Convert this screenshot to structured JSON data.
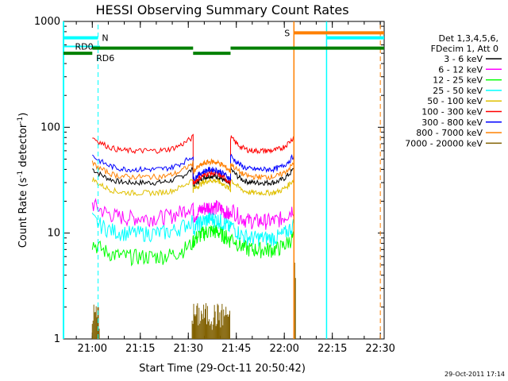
{
  "chart_data": {
    "type": "line",
    "title": "HESSI Observing Summary Count Rates",
    "xlabel": "Start Time (29-Oct-11 20:50:42)",
    "ylabel_main": "Count Rate (s",
    "ylabel_sup1": "-1",
    "ylabel_mid": " detector",
    "ylabel_sup2": "-1",
    "ylabel_end": ")",
    "yscale": "log",
    "ylim": [
      1,
      1000
    ],
    "xlim_minutes": [
      20.85,
      22.52
    ],
    "x_ticks": [
      "21:00",
      "21:15",
      "21:30",
      "21:45",
      "22:00",
      "22:15",
      "22:30"
    ],
    "x_tick_values": [
      21.0,
      21.25,
      21.5,
      21.75,
      22.0,
      22.25,
      22.5
    ],
    "y_ticks": [
      "1",
      "10",
      "100",
      "1000"
    ],
    "y_tick_values": [
      1,
      10,
      100,
      1000
    ],
    "legend_header": [
      "Det 1,3,4,5,6,",
      "FDecim 1, Att 0"
    ],
    "series": [
      {
        "name": "3 - 6 keV",
        "color": "#000000",
        "levels": [
          30,
          33,
          30
        ]
      },
      {
        "name": "6 - 12 keV",
        "color": "#ff00ff",
        "levels": [
          14,
          17,
          13
        ]
      },
      {
        "name": "12 - 25 keV",
        "color": "#00ff00",
        "levels": [
          6,
          10,
          7
        ]
      },
      {
        "name": "25 - 50 keV",
        "color": "#00ffff",
        "levels": [
          10,
          13,
          9
        ]
      },
      {
        "name": "50 - 100 keV",
        "color": "#e0c000",
        "levels": [
          24,
          30,
          24
        ]
      },
      {
        "name": "100 - 300 keV",
        "color": "#ff0000",
        "levels": [
          60,
          35,
          60
        ]
      },
      {
        "name": "300 - 800 keV",
        "color": "#0000ff",
        "levels": [
          40,
          38,
          40
        ]
      },
      {
        "name": "800 - 7000 keV",
        "color": "#ff8000",
        "levels": [
          34,
          45,
          34
        ]
      },
      {
        "name": "7000 - 20000 keV",
        "color": "#806000",
        "levels": [
          1,
          2,
          1
        ]
      }
    ],
    "flags": [
      {
        "label": "N",
        "color": "#00ffff"
      },
      {
        "label": "RD0",
        "color": "#00ffff"
      },
      {
        "label": "RD6",
        "color": "#008000"
      },
      {
        "label": "S",
        "color": "#ff8000"
      }
    ]
  },
  "footer": {
    "timestamp": "29-Oct-2011 17:14"
  }
}
